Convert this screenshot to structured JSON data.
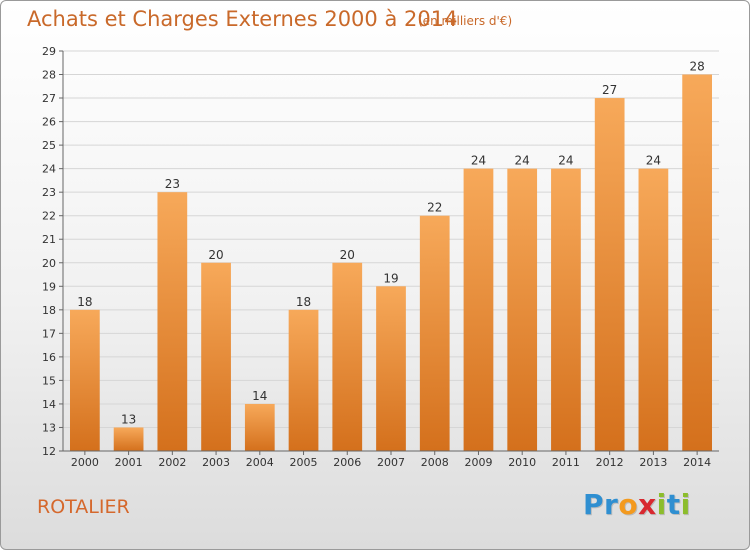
{
  "title": "Achats et Charges Externes 2000 à 2014",
  "subtitle": "(en milliers d'€)",
  "commune": "ROTALIER",
  "logo": {
    "letters": [
      "P",
      "r",
      "o",
      "x",
      "i",
      "t",
      "i"
    ],
    "colors": [
      "#2f8fd1",
      "#2f8fd1",
      "#f39a1e",
      "#d8282f",
      "#8cbd2c",
      "#2f8fd1",
      "#8cbd2c"
    ]
  },
  "colors": {
    "bar_top": "#f7a95a",
    "bar_bottom": "#d4701c",
    "title": "#c9692a"
  },
  "chart_data": {
    "type": "bar",
    "title": "Achats et Charges Externes 2000 à 2014",
    "subtitle": "(en milliers d'€)",
    "categories": [
      "2000",
      "2001",
      "2002",
      "2003",
      "2004",
      "2005",
      "2006",
      "2007",
      "2008",
      "2009",
      "2010",
      "2011",
      "2012",
      "2013",
      "2014"
    ],
    "values": [
      18,
      13,
      23,
      20,
      14,
      18,
      20,
      19,
      22,
      24,
      24,
      24,
      27,
      24,
      28
    ],
    "ylim": [
      12,
      29
    ],
    "yticks": [
      12,
      13,
      14,
      15,
      16,
      17,
      18,
      19,
      20,
      21,
      22,
      23,
      24,
      25,
      26,
      27,
      28,
      29
    ],
    "grid": true
  }
}
